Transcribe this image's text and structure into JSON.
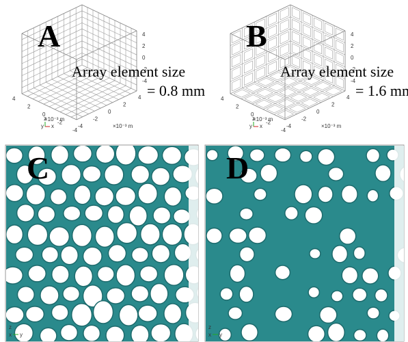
{
  "panels": [
    {
      "label": "A",
      "annotation": [
        "Array element size",
        "= 0.8 mm"
      ],
      "vertical_ticks": [
        "4",
        "2",
        "0",
        "-2",
        "-4"
      ],
      "left_ticks": [
        "4",
        "2",
        "0",
        "-2",
        "-4"
      ],
      "left_unit": "×10⁻³ m",
      "bottom_ticks": [
        "-4",
        "-2",
        "0",
        "2",
        "4"
      ],
      "bottom_unit": "×10⁻³ m",
      "triad": [
        "y",
        "z",
        "x"
      ]
    },
    {
      "label": "B",
      "annotation": [
        "Array element size",
        "= 1.6 mm"
      ],
      "vertical_ticks": [
        "4",
        "2",
        "0",
        "-2",
        "-4"
      ],
      "left_ticks": [
        "4",
        "2",
        "0",
        "-2",
        "-4"
      ],
      "left_unit": "×10⁻³ m",
      "bottom_ticks": [
        "-4",
        "-2",
        "0",
        "2",
        "4"
      ],
      "bottom_unit": "×10⁻³ m",
      "triad": [
        "y",
        "z",
        "x"
      ]
    },
    {
      "label": "C",
      "triad": [
        "z",
        "x",
        "y"
      ]
    },
    {
      "label": "D",
      "triad": [
        "z",
        "x",
        "y"
      ]
    }
  ]
}
